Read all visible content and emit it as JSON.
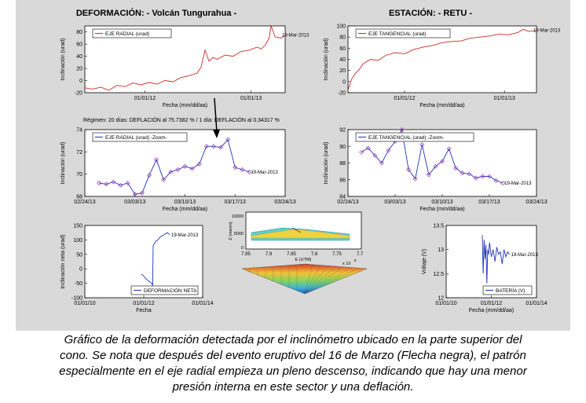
{
  "figure": {
    "title_left": "DEFORMACIÓN: - Volcán Tungurahua -",
    "title_right": "ESTACIÓN: - RETU -",
    "regime_text": "Régimen: 20 días: DEFLACIÓN al 75.7382 % / 1 día: DEFLACIÓN al 0.34317 %"
  },
  "caption": {
    "line1": "Gráfico de la deformación detectada por el inclinómetro ubicado en la parte superior del",
    "line2": "cono.  Se nota que después del evento eruptivo del 16 de Marzo (Flecha negra), el patrón",
    "line3": "especialmente en el eje radial empieza un pleno descenso, indicando que hay una menor",
    "line4": "presión interna en este sector y una deflación."
  },
  "colors": {
    "figure_bg": "#d9d9d9",
    "red_series": "#cc2a2a",
    "blue_series": "#1f33b8",
    "marker": "#9b3aa8"
  },
  "chart_data": [
    {
      "id": "radial",
      "type": "line",
      "legend": "EJE RADIAL (urad)",
      "end_label": "19-Mar-2013",
      "ylabel": "Inclinación (urad)",
      "xlabel": "Fecha (mm/dd/aa)",
      "ylim": [
        -20,
        90
      ],
      "yticks": [
        -20,
        0,
        20,
        40,
        60,
        80
      ],
      "xlim": [
        0,
        1
      ],
      "xticks": [
        {
          "x": 0.3,
          "label": "01/01/12"
        },
        {
          "x": 0.83,
          "label": "01/01/13"
        }
      ],
      "series": [
        {
          "color": "#cc2a2a",
          "x": [
            0,
            0.04,
            0.08,
            0.12,
            0.16,
            0.2,
            0.24,
            0.28,
            0.32,
            0.36,
            0.4,
            0.44,
            0.48,
            0.52,
            0.56,
            0.58,
            0.6,
            0.62,
            0.64,
            0.66,
            0.7,
            0.74,
            0.78,
            0.82,
            0.86,
            0.88,
            0.9,
            0.92,
            0.93,
            0.95,
            0.98,
            1
          ],
          "y": [
            -12,
            -14,
            -11,
            -16,
            -8,
            -10,
            -4,
            -7,
            -3,
            -6,
            0,
            -2,
            5,
            8,
            12,
            22,
            50,
            32,
            38,
            35,
            42,
            40,
            48,
            50,
            55,
            52,
            58,
            70,
            90,
            72,
            70,
            75
          ]
        }
      ]
    },
    {
      "id": "tangencial",
      "type": "line",
      "legend": "EJE TANGENCIAL (urad)",
      "end_label": "19-Mar-2013",
      "ylabel": "Inclinación (urad)",
      "xlabel": "Fecha (mm/dd/aa)",
      "ylim": [
        -20,
        100
      ],
      "yticks": [
        -20,
        0,
        20,
        40,
        60,
        80,
        100
      ],
      "xlim": [
        0,
        1
      ],
      "xticks": [
        {
          "x": 0.3,
          "label": "01/01/12"
        },
        {
          "x": 0.83,
          "label": "01/01/13"
        }
      ],
      "series": [
        {
          "color": "#cc2a2a",
          "x": [
            0,
            0.02,
            0.04,
            0.06,
            0.08,
            0.12,
            0.16,
            0.2,
            0.25,
            0.3,
            0.35,
            0.4,
            0.45,
            0.5,
            0.55,
            0.6,
            0.65,
            0.7,
            0.75,
            0.8,
            0.85,
            0.9,
            0.93,
            0.96,
            1
          ],
          "y": [
            -15,
            5,
            15,
            22,
            32,
            40,
            38,
            47,
            52,
            50,
            58,
            62,
            65,
            70,
            72,
            73,
            78,
            80,
            82,
            85,
            84,
            88,
            94,
            90,
            92
          ]
        }
      ]
    },
    {
      "id": "radial_zoom",
      "type": "line",
      "legend": "EJE RADIAL (urad) -Zoom-",
      "end_label": "19-Mar-2013",
      "ylabel": "Inclinación (urad)",
      "xlabel": "Fecha (mm/dd/aa)",
      "ylim": [
        68,
        74
      ],
      "yticks": [
        68,
        70,
        72,
        74
      ],
      "xlim": [
        0,
        28
      ],
      "xticks": [
        {
          "x": 0,
          "label": "02/24/13"
        },
        {
          "x": 7,
          "label": "03/03/13"
        },
        {
          "x": 14,
          "label": "03/10/13"
        },
        {
          "x": 21,
          "label": "03/17/13"
        },
        {
          "x": 28,
          "label": "03/24/13"
        }
      ],
      "series": [
        {
          "color": "#1f33b8",
          "x": [
            2,
            3,
            4,
            5,
            6,
            7,
            8,
            9,
            10,
            11,
            12,
            13,
            14,
            15,
            16,
            17,
            18,
            19,
            20,
            21,
            22,
            23
          ],
          "y": [
            69.2,
            69.1,
            69.3,
            69.0,
            69.2,
            68.2,
            68.3,
            69.9,
            71.3,
            69.5,
            70.2,
            70.4,
            70.7,
            70.5,
            70.9,
            72.5,
            72.5,
            72.4,
            73.1,
            70.6,
            70.4,
            70.2
          ]
        }
      ]
    },
    {
      "id": "tangencial_zoom",
      "type": "line",
      "legend": "EJE TANGENCIAL (urad) -Zoom-",
      "end_label": "19-Mar-2013",
      "ylabel": "Inclinación (urad)",
      "xlabel": "Fecha (mm/dd/aa)",
      "ylim": [
        84,
        92
      ],
      "yticks": [
        84,
        86,
        88,
        90,
        92
      ],
      "xlim": [
        0,
        28
      ],
      "xticks": [
        {
          "x": 0,
          "label": "02/24/13"
        },
        {
          "x": 7,
          "label": "03/03/13"
        },
        {
          "x": 14,
          "label": "03/10/13"
        },
        {
          "x": 21,
          "label": "03/17/13"
        },
        {
          "x": 28,
          "label": "03/24/13"
        }
      ],
      "series": [
        {
          "color": "#1f33b8",
          "x": [
            2,
            3,
            4,
            5,
            6,
            7,
            8,
            9,
            10,
            11,
            12,
            13,
            14,
            15,
            16,
            17,
            18,
            19,
            20,
            21,
            22,
            23
          ],
          "y": [
            89.3,
            89.8,
            88.9,
            88.0,
            89.5,
            90.6,
            92.0,
            87.2,
            86.1,
            90.2,
            86.6,
            87.6,
            88.2,
            89.7,
            87.4,
            86.8,
            86.7,
            86.2,
            86.4,
            86.4,
            85.9,
            85.6
          ]
        }
      ]
    },
    {
      "id": "neta",
      "type": "line",
      "legend": "DEFORMACIÓN NETA",
      "end_label": "19-Mar-2013",
      "ylabel": "Inclinación neta (urad)",
      "xlabel": "Fecha",
      "ylim": [
        -100,
        150
      ],
      "yticks": [
        -100,
        -50,
        0,
        50,
        100,
        150
      ],
      "xlim": [
        0,
        1
      ],
      "xticks": [
        {
          "x": 0,
          "label": "01/01/10"
        },
        {
          "x": 0.5,
          "label": "01/01/12"
        },
        {
          "x": 1,
          "label": "01/01/14"
        }
      ],
      "series": [
        {
          "color": "#1f33b8",
          "x": [
            0.48,
            0.5,
            0.52,
            0.535,
            0.55,
            0.56,
            0.57,
            0.575,
            0.58,
            0.6,
            0.62,
            0.64,
            0.66,
            0.68,
            0.7,
            0.72
          ],
          "y": [
            -18,
            -25,
            -35,
            -40,
            -45,
            -48,
            -50,
            -60,
            80,
            95,
            100,
            110,
            115,
            120,
            125,
            118
          ]
        }
      ]
    },
    {
      "id": "bateria",
      "type": "line",
      "legend": "BATERÍA (V)",
      "end_label": "19-Mar-2013",
      "ylabel": "Voltaje (V)",
      "xlabel": "Fecha (mm/dd/aa)",
      "ylim": [
        12,
        13.5
      ],
      "yticks": [
        12,
        12.5,
        13,
        13.5
      ],
      "xlim": [
        0,
        1
      ],
      "xticks": [
        {
          "x": 0,
          "label": "01/01/10"
        },
        {
          "x": 0.5,
          "label": "01/01/12"
        },
        {
          "x": 1,
          "label": "01/01/14"
        }
      ],
      "series": [
        {
          "color": "#1f33b8",
          "x": [
            0.4,
            0.41,
            0.42,
            0.43,
            0.44,
            0.45,
            0.46,
            0.47,
            0.48,
            0.5,
            0.52,
            0.54,
            0.56,
            0.58,
            0.6,
            0.62,
            0.64,
            0.66,
            0.68,
            0.7
          ],
          "y": [
            13.3,
            12.5,
            13.2,
            12.8,
            13.1,
            12.3,
            13.0,
            12.9,
            13.15,
            12.85,
            13.0,
            12.75,
            13.05,
            12.9,
            12.95,
            12.7,
            13.0,
            12.85,
            12.95,
            12.9
          ]
        }
      ]
    },
    {
      "id": "surface3d",
      "type": "other",
      "zlabel": "Z (msnm)",
      "xlabel": "E (UTM)",
      "exponent": "x 10",
      "exponent_power": "5",
      "zticks": [
        "0",
        "5000",
        "10000"
      ],
      "xticks": [
        "7.95",
        "7.9",
        "7.85",
        "7.8",
        "7.75",
        "7.7"
      ]
    }
  ]
}
